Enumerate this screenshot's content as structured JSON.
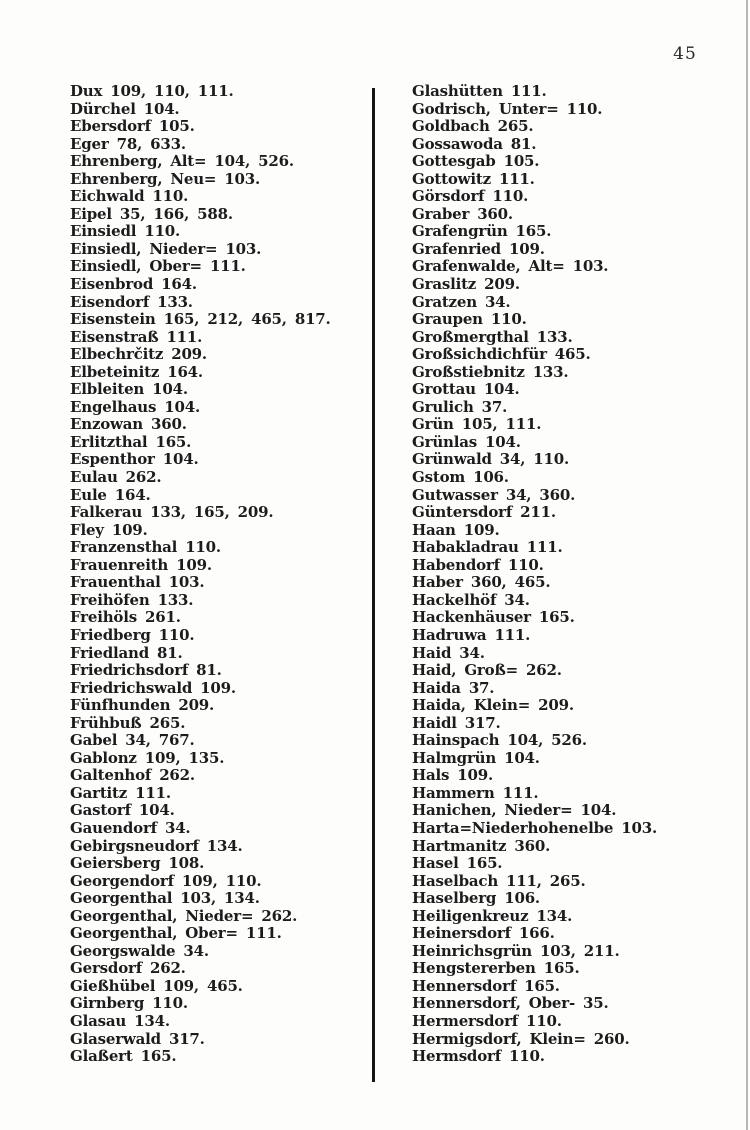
{
  "page": {
    "number": "45"
  },
  "index": {
    "left_column": [
      "Dux 109, 110, 111.",
      "Dürchel 104.",
      "Ebersdorf 105.",
      "Eger 78, 633.",
      "Ehrenberg, Alt= 104, 526.",
      "Ehrenberg, Neu= 103.",
      "Eichwald 110.",
      "Eipel 35, 166, 588.",
      "Einsiedl 110.",
      "Einsiedl, Nieder= 103.",
      "Einsiedl, Ober= 111.",
      "Eisenbrod 164.",
      "Eisendorf 133.",
      "Eisenstein 165, 212, 465, 817.",
      "Eisenstraß 111.",
      "Elbechrčitz 209.",
      "Elbeteinitz 164.",
      "Elbleiten 104.",
      "Engelhaus 104.",
      "Enzowan 360.",
      "Erlitzthal 165.",
      "Espenthor 104.",
      "Eulau 262.",
      "Eule 164.",
      "Falkerau 133, 165, 209.",
      "Fley 109.",
      "Franzensthal 110.",
      "Frauenreith 109.",
      "Frauenthal 103.",
      "Freihöfen 133.",
      "Freihöls 261.",
      "Friedberg 110.",
      "Friedland 81.",
      "Friedrichsdorf 81.",
      "Friedrichswald 109.",
      "Fünfhunden 209.",
      "Frühbuß 265.",
      "Gabel 34, 767.",
      "Gablonz 109, 135.",
      "Galtenhof 262.",
      "Gartitz 111.",
      "Gastorf 104.",
      "Gauendorf 34.",
      "Gebirgsneudorf 134.",
      "Geiersberg 108.",
      "Georgendorf 109, 110.",
      "Georgenthal 103, 134.",
      "Georgenthal, Nieder= 262.",
      "Georgenthal, Ober= 111.",
      "Georgswalde 34.",
      "Gersdorf 262.",
      "Gießhübel 109, 465.",
      "Girnberg 110.",
      "Glasau 134.",
      "Glaserwald 317.",
      "Glaßert 165."
    ],
    "right_column": [
      "Glashütten 111.",
      "Godrisch, Unter= 110.",
      "Goldbach 265.",
      "Gossawoda 81.",
      "Gottesgab 105.",
      "Gottowitz 111.",
      "Görsdorf 110.",
      "Graber 360.",
      "Grafengrün 165.",
      "Grafenried 109.",
      "Grafenwalde, Alt= 103.",
      "Graslitz 209.",
      "Gratzen 34.",
      "Graupen 110.",
      "Großmergthal 133.",
      "Großsichdichfür 465.",
      "Großstiebnitz 133.",
      "Grottau 104.",
      "Grulich 37.",
      "Grün 105, 111.",
      "Grünlas 104.",
      "Grünwald 34, 110.",
      "Gstom 106.",
      "Gutwasser 34, 360.",
      "Güntersdorf 211.",
      "Haan 109.",
      "Habakladrau 111.",
      "Habendorf 110.",
      "Haber 360, 465.",
      "Hackelhöf 34.",
      "Hackenhäuser 165.",
      "Hadruwa 111.",
      "Haid 34.",
      "Haid, Groß= 262.",
      "Haida 37.",
      "Haida, Klein= 209.",
      "Haidl 317.",
      "Hainspach 104, 526.",
      "Halmgrün 104.",
      "Hals 109.",
      "Hammern 111.",
      "Hanichen, Nieder= 104.",
      "Harta=Niederhohenelbe 103.",
      "Hartmanitz 360.",
      "Hasel 165.",
      "Haselbach 111, 265.",
      "Haselberg 106.",
      "Heiligenkreuz 134.",
      "Heinersdorf 166.",
      "Heinrichsgrün 103, 211.",
      "Hengstererben 165.",
      "Hennersdorf 165.",
      "Hennersdorf, Ober- 35.",
      "Hermersdorf 110.",
      "Hermigsdorf, Klein= 260.",
      "Hermsdorf 110."
    ]
  }
}
